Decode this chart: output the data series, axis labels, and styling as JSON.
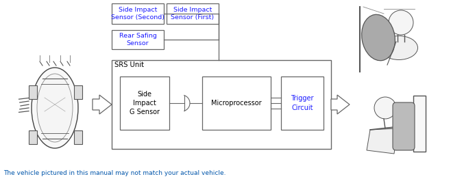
{
  "bg_color": "#ffffff",
  "line_color": "#555555",
  "box_stroke": "#666666",
  "text_color": "#000000",
  "blue_text_color": "#0055aa",
  "fig_width": 6.58,
  "fig_height": 2.65,
  "dpi": 100,
  "footnote": "The vehicle pictured in this manual may not match your actual vehicle.",
  "sensor_text_color": "#1a1aff",
  "box_label_second": "Side Impact\nSensor (Second)",
  "box_label_first": "Side Impact\nSensor (First)",
  "box_label_rear": "Rear Safing\nSensor",
  "box_label_srs": "SRS Unit",
  "box_label_gsensor": "Side\nImpact\nG Sensor",
  "box_label_micro": "Microprocessor",
  "box_label_trigger": "Trigger\nCircuit"
}
